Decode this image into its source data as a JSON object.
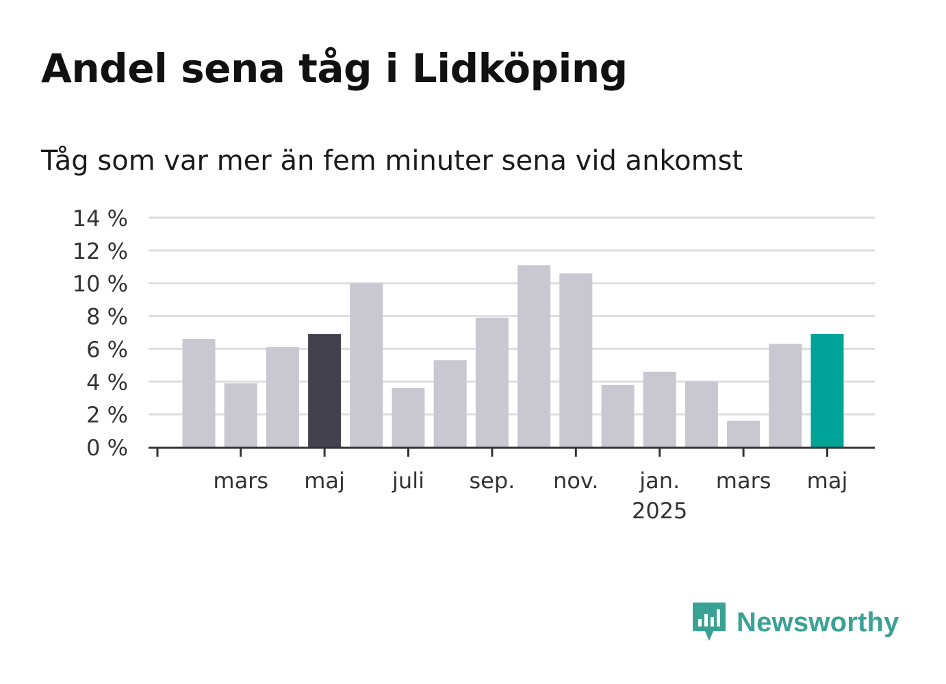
{
  "title": "Andel sena tåg i Lidköping",
  "subtitle": "Tåg som var mer än fem minuter sena vid ankomst",
  "brand": {
    "name": "Newsworthy",
    "icon": "newsworthy-logo-icon",
    "color": "#3aa294"
  },
  "colors": {
    "default": "#c9c8d1",
    "highlight_prev": "#43414e",
    "highlight_current": "#00a398",
    "grid": "#dedede",
    "axis": "#333333"
  },
  "chart_data": {
    "type": "bar",
    "title": "Andel sena tåg i Lidköping",
    "subtitle": "Tåg som var mer än fem minuter sena vid ankomst",
    "xlabel": "",
    "ylabel": "",
    "ylim": [
      0,
      14
    ],
    "yticks": [
      0,
      2,
      4,
      6,
      8,
      10,
      12,
      14
    ],
    "ytick_labels": [
      "0 %",
      "2 %",
      "4 %",
      "6 %",
      "8 %",
      "10 %",
      "12 %",
      "14 %"
    ],
    "grid": true,
    "categories": [
      "2024-02",
      "2024-03",
      "2024-04",
      "2024-05",
      "2024-06",
      "2024-07",
      "2024-08",
      "2024-09",
      "2024-10",
      "2024-11",
      "2024-12",
      "2025-01",
      "2025-02",
      "2025-03",
      "2025-04",
      "2025-05"
    ],
    "values": [
      6.6,
      3.9,
      6.1,
      6.9,
      10.0,
      3.6,
      5.3,
      7.9,
      11.1,
      10.6,
      3.8,
      4.6,
      4.0,
      1.6,
      6.3,
      6.9
    ],
    "bar_colors": [
      "default",
      "default",
      "default",
      "highlight_prev",
      "default",
      "default",
      "default",
      "default",
      "default",
      "default",
      "default",
      "default",
      "default",
      "default",
      "default",
      "highlight_current"
    ],
    "xtick_labels": [
      {
        "label": "mars",
        "sublabel": ""
      },
      {
        "label": "maj",
        "sublabel": ""
      },
      {
        "label": "juli",
        "sublabel": ""
      },
      {
        "label": "sep.",
        "sublabel": ""
      },
      {
        "label": "nov.",
        "sublabel": ""
      },
      {
        "label": "jan.",
        "sublabel": "2025"
      },
      {
        "label": "mars",
        "sublabel": ""
      },
      {
        "label": "maj",
        "sublabel": ""
      }
    ]
  }
}
